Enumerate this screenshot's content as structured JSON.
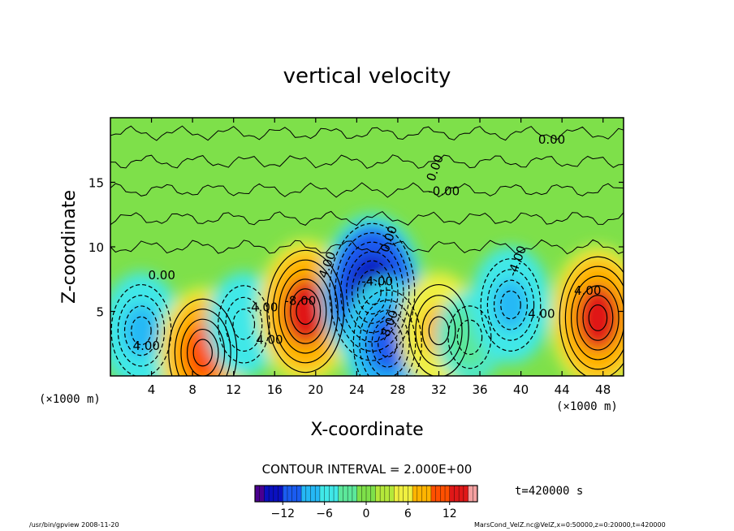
{
  "chart_data": {
    "type": "heatmap",
    "title": "vertical velocity",
    "xlabel": "X-coordinate",
    "ylabel": "Z-coordinate",
    "x_unit_left": "(×1000 m)",
    "x_unit_right": "(×1000 m)",
    "xlim": [
      0,
      50
    ],
    "ylim": [
      0,
      20
    ],
    "x_ticks": [
      "4",
      "8",
      "12",
      "16",
      "20",
      "24",
      "28",
      "32",
      "36",
      "40",
      "44",
      "48"
    ],
    "y_ticks": [
      "5",
      "10",
      "15"
    ],
    "contour_interval_text": "CONTOUR INTERVAL = 2.000E+00",
    "time_text": "t=420000 s",
    "colorbar": {
      "min": -16,
      "max": 16,
      "ticks": [
        "−12",
        "−6",
        "0",
        "6",
        "12"
      ]
    },
    "contour_labels": [
      "0.00",
      "0.00",
      "0.00",
      "-0.00",
      "4.00",
      "4.00",
      "4.00",
      "4.00",
      "-8.00",
      "-8.00",
      "0.00",
      "4.00",
      "-4.00",
      "-4.00",
      "-4.00"
    ],
    "cells": [
      {
        "x": 3,
        "z": 3.5,
        "value": -8
      },
      {
        "x": 9,
        "z": 1.8,
        "value": 10
      },
      {
        "x": 13,
        "z": 4,
        "value": -6
      },
      {
        "x": 19,
        "z": 5,
        "value": 12
      },
      {
        "x": 25.5,
        "z": 6.5,
        "value": -14
      },
      {
        "x": 27,
        "z": 2.5,
        "value": -10
      },
      {
        "x": 32,
        "z": 3.5,
        "value": 8
      },
      {
        "x": 35,
        "z": 3,
        "value": -4
      },
      {
        "x": 39,
        "z": 5.5,
        "value": -8
      },
      {
        "x": 47.5,
        "z": 4.5,
        "value": 12
      }
    ]
  },
  "footer": {
    "left": "/usr/bin/gpview   2008-11-20",
    "right": "MarsCond_VelZ.nc@VelZ,x=0:50000,z=0:20000,t=420000"
  }
}
